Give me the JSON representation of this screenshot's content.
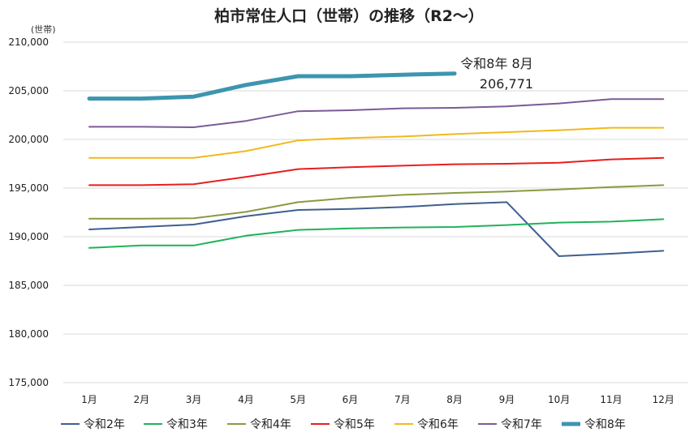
{
  "chart_data": {
    "type": "line",
    "title": "柏市常住人口（世帯）の推移（R2～）",
    "ylabel": "(世帯)",
    "xlabel": "",
    "categories": [
      "1月",
      "2月",
      "3月",
      "4月",
      "5月",
      "6月",
      "7月",
      "8月",
      "9月",
      "10月",
      "11月",
      "12月"
    ],
    "ylim": [
      175000,
      210000
    ],
    "yticks": [
      175000,
      180000,
      185000,
      190000,
      195000,
      200000,
      205000,
      210000
    ],
    "ytick_labels": [
      "175,000",
      "180,000",
      "185,000",
      "190,000",
      "195,000",
      "200,000",
      "205,000",
      "210,000"
    ],
    "grid": "horizontal",
    "legend_position": "bottom",
    "series": [
      {
        "name": "令和2年",
        "color": "#3f5f8f",
        "values": [
          190750,
          191000,
          191250,
          192100,
          192750,
          192850,
          193050,
          193350,
          193550,
          188000,
          188250,
          188550
        ]
      },
      {
        "name": "令和3年",
        "color": "#1fb35a",
        "values": [
          188850,
          189100,
          189100,
          190100,
          190700,
          190850,
          190950,
          191000,
          191200,
          191450,
          191550,
          191800
        ]
      },
      {
        "name": "令和4年",
        "color": "#8a9a3f",
        "values": [
          191850,
          191850,
          191900,
          192550,
          193550,
          194000,
          194300,
          194500,
          194650,
          194850,
          195100,
          195300
        ]
      },
      {
        "name": "令和5年",
        "color": "#e81e1e",
        "values": [
          195300,
          195300,
          195400,
          196150,
          196950,
          197150,
          197300,
          197450,
          197500,
          197600,
          197950,
          198100
        ]
      },
      {
        "name": "令和6年",
        "color": "#f2b91b",
        "values": [
          198100,
          198100,
          198100,
          198800,
          199900,
          200150,
          200300,
          200550,
          200750,
          200950,
          201200,
          201200
        ]
      },
      {
        "name": "令和7年",
        "color": "#7a5b97",
        "values": [
          201300,
          201300,
          201250,
          201900,
          202900,
          203000,
          203200,
          203250,
          203400,
          203700,
          204150,
          204150
        ]
      },
      {
        "name": "令和8年",
        "color": "#3d95b0",
        "values": [
          204200,
          204200,
          204400,
          205600,
          206500,
          206500,
          206650,
          206771,
          null,
          null,
          null,
          null
        ]
      }
    ],
    "annotation": {
      "line1": "令和8年 8月",
      "line2": "206,771"
    }
  }
}
